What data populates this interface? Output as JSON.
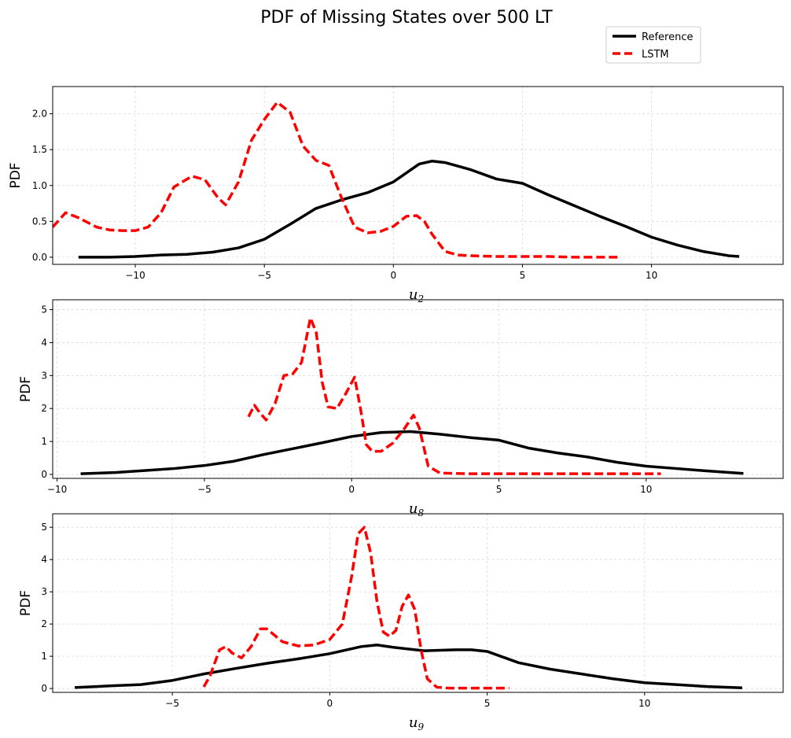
{
  "figure": {
    "title": "PDF of Missing States over 500 LT"
  },
  "legend": {
    "placement": "top-right",
    "entries": [
      {
        "label": "Reference",
        "color": "#000000",
        "style": "solid"
      },
      {
        "label": "LSTM",
        "color": "#ff0000",
        "style": "dashed"
      }
    ]
  },
  "chart_data": [
    {
      "type": "line",
      "title": "",
      "xlabel_main": "u",
      "xlabel_sub": "2",
      "ylabel": "PDF",
      "xlim": [
        -13.2,
        15.1
      ],
      "ylim": [
        -0.1,
        2.38
      ],
      "xticks": [
        -10,
        -5,
        0,
        5,
        10
      ],
      "xtick_labels": [
        "−10",
        "−5",
        "0",
        "5",
        "10"
      ],
      "yticks": [
        0.0,
        0.5,
        1.0,
        1.5,
        2.0
      ],
      "ytick_labels": [
        "0.0",
        "0.5",
        "1.0",
        "1.5",
        "2.0"
      ],
      "grid": true,
      "series": [
        {
          "name": "Reference",
          "color": "#000000",
          "dashed": false,
          "x": [
            -12.2,
            -11,
            -10,
            -9,
            -8,
            -7,
            -6,
            -5,
            -4,
            -3,
            -2,
            -1,
            0,
            1,
            1.5,
            2,
            3,
            4,
            5,
            6,
            7,
            8,
            9,
            10,
            11,
            12,
            13,
            13.4
          ],
          "y": [
            0.0,
            0.0,
            0.01,
            0.03,
            0.04,
            0.07,
            0.13,
            0.25,
            0.46,
            0.68,
            0.8,
            0.9,
            1.05,
            1.3,
            1.34,
            1.32,
            1.22,
            1.09,
            1.03,
            0.87,
            0.72,
            0.57,
            0.43,
            0.28,
            0.17,
            0.08,
            0.02,
            0.01
          ]
        },
        {
          "name": "LSTM",
          "color": "#ff0000",
          "dashed": true,
          "x": [
            -13.2,
            -12.7,
            -12.2,
            -11.5,
            -11,
            -10.5,
            -10,
            -9.5,
            -9,
            -8.5,
            -7.8,
            -7.3,
            -6.8,
            -6.5,
            -6,
            -5.5,
            -5,
            -4.5,
            -4,
            -3.5,
            -3,
            -2.5,
            -2,
            -1.5,
            -1,
            -0.5,
            0,
            0.5,
            0.9,
            1.2,
            1.5,
            2,
            2.5,
            3,
            4,
            5,
            6,
            7,
            8,
            8.8
          ],
          "y": [
            0.42,
            0.62,
            0.55,
            0.42,
            0.38,
            0.37,
            0.37,
            0.42,
            0.62,
            0.98,
            1.13,
            1.08,
            0.83,
            0.73,
            1.05,
            1.63,
            1.92,
            2.16,
            2.02,
            1.55,
            1.35,
            1.28,
            0.82,
            0.42,
            0.34,
            0.36,
            0.43,
            0.57,
            0.58,
            0.5,
            0.32,
            0.08,
            0.03,
            0.02,
            0.01,
            0.01,
            0.01,
            0.0,
            0.0,
            0.0
          ]
        }
      ]
    },
    {
      "type": "line",
      "title": "",
      "xlabel_main": "u",
      "xlabel_sub": "8",
      "ylabel": "PDF",
      "xlim": [
        -10.15,
        14.65
      ],
      "ylim": [
        -0.12,
        5.3
      ],
      "xticks": [
        -10,
        -5,
        0,
        5,
        10
      ],
      "xtick_labels": [
        "−10",
        "−5",
        "0",
        "5",
        "10"
      ],
      "yticks": [
        0,
        1,
        2,
        3,
        4,
        5
      ],
      "ytick_labels": [
        "0",
        "1",
        "2",
        "3",
        "4",
        "5"
      ],
      "grid": true,
      "series": [
        {
          "name": "Reference",
          "color": "#000000",
          "dashed": false,
          "x": [
            -9.2,
            -8,
            -7,
            -6,
            -5,
            -4,
            -3,
            -2,
            -1,
            0,
            1,
            2,
            3,
            4,
            5,
            6,
            7,
            8,
            9,
            10,
            11,
            12,
            13.3
          ],
          "y": [
            0.02,
            0.06,
            0.12,
            0.18,
            0.27,
            0.4,
            0.6,
            0.78,
            0.96,
            1.15,
            1.27,
            1.3,
            1.22,
            1.12,
            1.04,
            0.8,
            0.65,
            0.53,
            0.37,
            0.25,
            0.18,
            0.11,
            0.03
          ]
        },
        {
          "name": "LSTM",
          "color": "#ff0000",
          "dashed": true,
          "x": [
            -3.5,
            -3.3,
            -3.1,
            -2.9,
            -2.6,
            -2.3,
            -2,
            -1.7,
            -1.4,
            -1.2,
            -1,
            -0.8,
            -0.5,
            -0.2,
            0.1,
            0.3,
            0.5,
            0.7,
            1,
            1.4,
            1.8,
            2.1,
            2.3,
            2.6,
            3,
            4,
            5,
            6,
            7,
            8,
            9,
            10.5
          ],
          "y": [
            1.75,
            2.1,
            1.85,
            1.65,
            2.15,
            3.0,
            3.05,
            3.4,
            4.75,
            4.3,
            2.8,
            2.05,
            2.0,
            2.45,
            2.95,
            2.0,
            0.9,
            0.7,
            0.7,
            0.95,
            1.4,
            1.8,
            1.4,
            0.25,
            0.04,
            0.02,
            0.02,
            0.02,
            0.02,
            0.02,
            0.02,
            0.02
          ]
        }
      ]
    },
    {
      "type": "line",
      "title": "",
      "xlabel_main": "u",
      "xlabel_sub": "9",
      "ylabel": "PDF",
      "xlim": [
        -8.8,
        14.4
      ],
      "ylim": [
        -0.12,
        5.42
      ],
      "xticks": [
        -5,
        0,
        5,
        10
      ],
      "xtick_labels": [
        "−5",
        "0",
        "5",
        "10"
      ],
      "yticks": [
        0,
        1,
        2,
        3,
        4,
        5
      ],
      "ytick_labels": [
        "0",
        "1",
        "2",
        "3",
        "4",
        "5"
      ],
      "grid": true,
      "series": [
        {
          "name": "Reference",
          "color": "#000000",
          "dashed": false,
          "x": [
            -8.1,
            -7,
            -6,
            -5,
            -4,
            -3,
            -2,
            -1,
            0,
            1,
            1.5,
            2,
            3,
            4,
            4.5,
            5,
            6,
            7,
            8,
            9,
            10,
            11,
            12,
            13.1
          ],
          "y": [
            0.03,
            0.08,
            0.12,
            0.25,
            0.45,
            0.62,
            0.78,
            0.92,
            1.08,
            1.3,
            1.35,
            1.28,
            1.17,
            1.2,
            1.2,
            1.15,
            0.8,
            0.6,
            0.45,
            0.3,
            0.18,
            0.12,
            0.06,
            0.02
          ]
        },
        {
          "name": "LSTM",
          "color": "#ff0000",
          "dashed": true,
          "x": [
            -4,
            -3.8,
            -3.5,
            -3.3,
            -3.1,
            -2.8,
            -2.5,
            -2.2,
            -2,
            -1.5,
            -1,
            -0.5,
            0,
            0.4,
            0.7,
            0.9,
            1.1,
            1.3,
            1.5,
            1.7,
            1.9,
            2.1,
            2.3,
            2.5,
            2.7,
            2.9,
            3.1,
            3.4,
            3.8,
            4.5,
            5,
            5.7
          ],
          "y": [
            0.05,
            0.4,
            1.2,
            1.3,
            1.1,
            0.95,
            1.3,
            1.85,
            1.85,
            1.45,
            1.32,
            1.35,
            1.52,
            2.0,
            3.5,
            4.8,
            5.0,
            4.2,
            2.7,
            1.75,
            1.62,
            1.8,
            2.55,
            2.9,
            2.45,
            1.2,
            0.3,
            0.04,
            0.01,
            0.01,
            0.01,
            0.01
          ]
        }
      ]
    }
  ]
}
